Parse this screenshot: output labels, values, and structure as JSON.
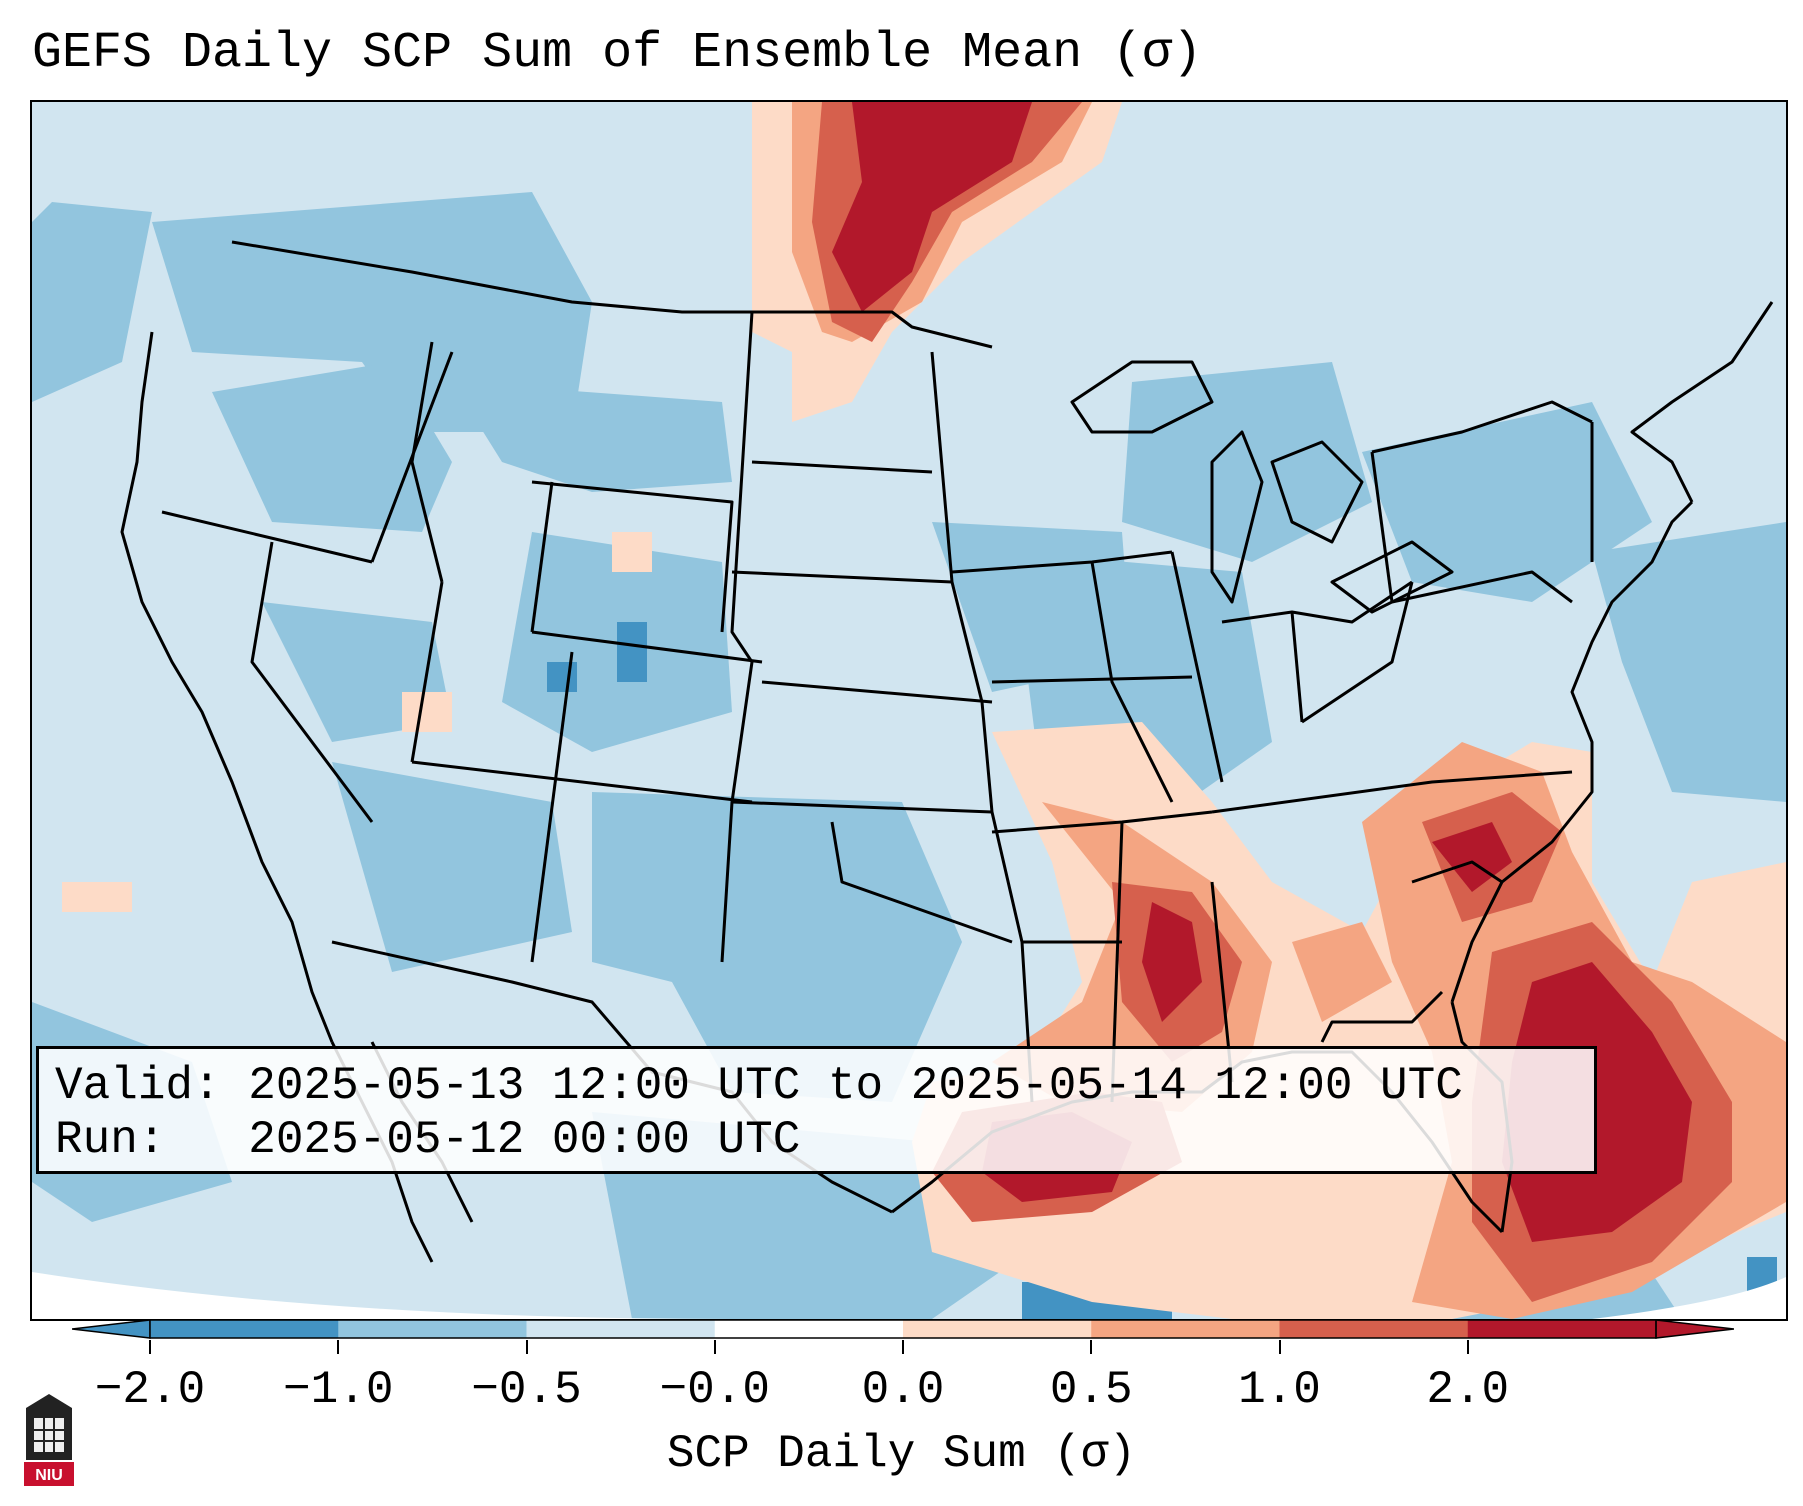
{
  "title": "GEFS Daily SCP Sum of Ensemble Mean (σ)",
  "info": {
    "valid_label": "Valid:",
    "valid_value": "2025-05-13 12:00 UTC to 2025-05-14 12:00 UTC",
    "run_label": "Run:",
    "run_value": "2025-05-12 00:00 UTC"
  },
  "colorbar": {
    "label": "SCP Daily Sum (σ)",
    "ticks": [
      "−2.0",
      "−1.0",
      "−0.5",
      "−0.0",
      "0.0",
      "0.5",
      "1.0",
      "2.0"
    ],
    "colors": [
      "#4393c3",
      "#92c5de",
      "#d1e5f0",
      "#ffffff",
      "#fddbc7",
      "#f4a582",
      "#d6604d",
      "#b2182b"
    ],
    "extend": "both"
  },
  "map": {
    "projection": "Lambert Conformal (CONUS)",
    "ocean_background_color": "#d1e5f0",
    "notable_regions": [
      {
        "name": "northern plains / Canada border",
        "level": "1.0 to 2.0"
      },
      {
        "name": "lower Mississippi valley",
        "level": "1.0 to 2.0"
      },
      {
        "name": "northern Gulf of Mexico",
        "level": "1.0 to 2.0"
      },
      {
        "name": "Carolinas",
        "level": "1.0 to 2.0"
      },
      {
        "name": "Florida / western Atlantic",
        "level": "1.0 to 2.0"
      }
    ]
  },
  "logo": {
    "text": "NIU"
  }
}
